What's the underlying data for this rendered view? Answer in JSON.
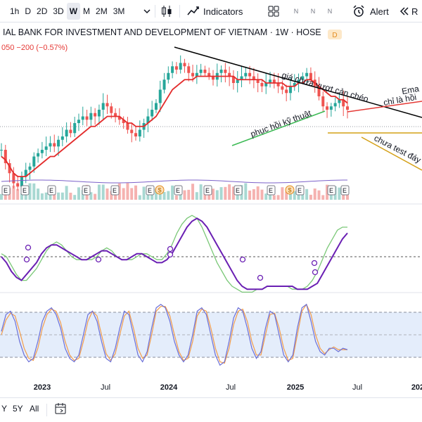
{
  "toolbar": {
    "timeframes": [
      "1h",
      "D",
      "2D",
      "3D",
      "W",
      "M",
      "2M",
      "3M"
    ],
    "active_timeframe": "W",
    "indicators_label": "Indicators",
    "modes": [
      "N",
      "N",
      "N"
    ],
    "alert_label": "Alert",
    "replay_label": "R"
  },
  "legend": {
    "title": "IAL BANK FOR INVESTMENT AND DEVELOPMENT OF VIETNAM · 1W · HOSE",
    "badge": "D",
    "change": "050  −200 (−0.57%)"
  },
  "bottombar": {
    "ranges": [
      "Y",
      "5Y",
      "All"
    ]
  },
  "colors": {
    "up": "#26a69a",
    "down": "#ef5350",
    "ema": "#e32c2c",
    "macd": "#6a1fb3",
    "signal": "#7ac877",
    "stoch_k": "#6a6fd8",
    "stoch_d": "#f39c4a",
    "trend_black": "#000000",
    "trend_green": "#3cba54",
    "trend_red": "#e53935",
    "trend_gold": "#d4a017"
  },
  "chart_data": {
    "type": "candlestick",
    "title": "IAL BANK FOR INVESTMENT AND DEVELOPMENT OF VIETNAM · 1W · HOSE",
    "x_ticks": [
      "2023",
      "Jul",
      "2024",
      "Jul",
      "2025",
      "Jul",
      "202"
    ],
    "earnings_markers": [
      "E",
      "E",
      "E",
      "E",
      "E",
      "E",
      "E",
      "E",
      "E",
      "E",
      "E",
      "E",
      "E"
    ],
    "dividend_markers": [
      "$",
      "$"
    ],
    "annotations": [
      {
        "text": "giá chưa vượt cản chéo",
        "kind": "trendline-label"
      },
      {
        "text": "phục hồi kỹ thuật",
        "kind": "trendline-label"
      },
      {
        "text": "Ema",
        "kind": "label"
      },
      {
        "text": "chỉ là hồi",
        "kind": "label"
      },
      {
        "text": "chưa test đáy",
        "kind": "label"
      }
    ],
    "price_series": [
      32,
      28,
      25,
      22,
      21,
      24,
      26,
      27,
      30,
      31,
      32,
      33,
      34,
      33,
      35,
      36,
      38,
      37,
      40,
      41,
      42,
      41,
      43,
      42,
      44,
      46,
      45,
      43,
      42,
      41,
      40,
      38,
      37,
      36,
      38,
      40,
      42,
      44,
      46,
      50,
      53,
      55,
      57,
      56,
      58,
      57,
      55,
      54,
      55,
      56,
      55,
      54,
      53,
      55,
      56,
      55,
      54,
      52,
      53,
      54,
      55,
      54,
      53,
      52,
      51,
      52,
      53,
      52,
      51,
      50,
      49,
      51,
      52,
      53,
      54,
      55,
      53,
      51,
      48,
      45,
      44,
      45,
      46,
      47,
      45,
      44
    ],
    "ema_series": [
      30,
      29,
      27,
      25,
      24,
      24,
      24,
      25,
      26,
      27,
      28,
      29,
      30,
      30,
      31,
      32,
      33,
      34,
      35,
      36,
      37,
      38,
      39,
      39,
      40,
      41,
      42,
      42,
      42,
      42,
      41,
      40,
      40,
      39,
      39,
      39,
      40,
      41,
      42,
      44,
      46,
      48,
      50,
      51,
      52,
      53,
      53,
      53,
      54,
      54,
      54,
      54,
      54,
      54,
      54,
      54,
      54,
      54,
      53,
      53,
      53,
      53,
      53,
      53,
      53,
      52,
      52,
      52,
      52,
      52,
      51,
      51,
      51,
      52,
      52,
      53,
      53,
      52,
      51,
      50,
      49,
      48,
      48,
      47,
      47,
      46
    ],
    "macd": [
      0.0,
      -0.2,
      -0.5,
      -0.7,
      -0.8,
      -0.6,
      -0.4,
      -0.2,
      0.1,
      0.3,
      0.4,
      0.4,
      0.3,
      0.2,
      0.1,
      0.0,
      -0.1,
      -0.1,
      0.0,
      0.1,
      0.2,
      0.2,
      0.1,
      0.0,
      -0.1,
      -0.1,
      0.0,
      0.1,
      0.1,
      0.0,
      -0.1,
      -0.2,
      -0.2,
      -0.1,
      0.1,
      0.4,
      0.7,
      1.0,
      1.2,
      1.3,
      1.2,
      1.0,
      0.7,
      0.4,
      0.1,
      -0.2,
      -0.5,
      -0.8,
      -1.0,
      -1.1,
      -1.1,
      -1.1,
      -1.1,
      -1.0,
      -1.0,
      -1.0,
      -1.0,
      -1.0,
      -1.0,
      -1.1,
      -1.1,
      -1.1,
      -1.0,
      -0.9,
      -0.6,
      -0.3,
      0.0,
      0.3,
      0.6,
      0.8
    ],
    "signal": [
      0.1,
      0.0,
      -0.3,
      -0.6,
      -0.8,
      -0.8,
      -0.6,
      -0.4,
      -0.1,
      0.2,
      0.4,
      0.5,
      0.4,
      0.2,
      0.0,
      -0.1,
      -0.1,
      -0.1,
      -0.1,
      0.0,
      0.2,
      0.3,
      0.2,
      0.0,
      -0.1,
      -0.1,
      -0.1,
      0.0,
      0.1,
      0.1,
      0.0,
      -0.1,
      -0.1,
      0.1,
      0.4,
      0.8,
      1.1,
      1.3,
      1.4,
      1.3,
      1.0,
      0.6,
      0.2,
      -0.2,
      -0.5,
      -0.8,
      -1.0,
      -1.1,
      -1.2,
      -1.2,
      -1.2,
      -1.1,
      -1.1,
      -1.0,
      -1.0,
      -1.0,
      -1.0,
      -1.0,
      -1.1,
      -1.1,
      -1.1,
      -1.0,
      -0.8,
      -0.5,
      -0.1,
      0.3,
      0.6,
      0.9,
      1.0,
      1.0
    ],
    "stoch_k": [
      55,
      80,
      85,
      70,
      40,
      20,
      10,
      15,
      40,
      70,
      85,
      90,
      80,
      60,
      30,
      15,
      10,
      20,
      50,
      80,
      85,
      70,
      40,
      15,
      10,
      30,
      60,
      85,
      80,
      50,
      20,
      10,
      25,
      60,
      90,
      95,
      90,
      70,
      40,
      20,
      10,
      20,
      50,
      85,
      90,
      80,
      50,
      20,
      5,
      10,
      40,
      75,
      90,
      85,
      60,
      30,
      15,
      25,
      60,
      85,
      80,
      50,
      20,
      10,
      20,
      60,
      90,
      95,
      70,
      40,
      25,
      20,
      30,
      30,
      25,
      30,
      28
    ],
    "stoch_d": [
      50,
      72,
      82,
      78,
      55,
      30,
      15,
      12,
      30,
      60,
      80,
      88,
      85,
      68,
      40,
      20,
      12,
      15,
      40,
      70,
      85,
      78,
      50,
      22,
      12,
      22,
      50,
      78,
      85,
      60,
      30,
      15,
      20,
      50,
      85,
      92,
      92,
      78,
      50,
      25,
      12,
      15,
      40,
      78,
      88,
      85,
      60,
      30,
      10,
      8,
      30,
      65,
      85,
      88,
      70,
      40,
      20,
      20,
      50,
      80,
      82,
      60,
      30,
      12,
      15,
      50,
      85,
      95,
      80,
      50,
      30,
      22,
      28,
      32,
      28,
      28,
      28
    ]
  }
}
